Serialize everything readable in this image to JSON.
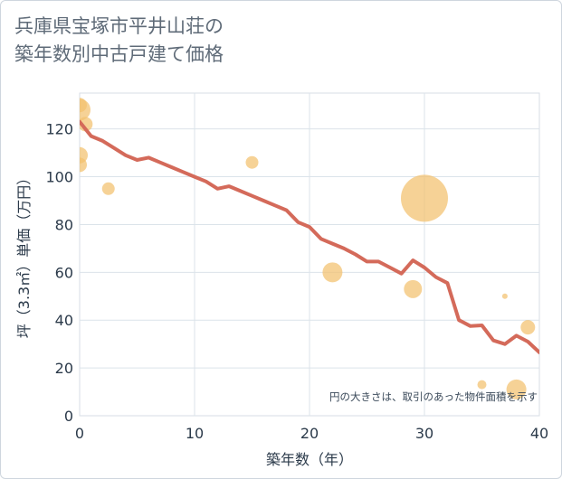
{
  "title_line1": "兵庫県宝塚市平井山荘の",
  "title_line2": "築年数別中古戸建て価格",
  "chart_data": {
    "type": "scatter",
    "title": "兵庫県宝塚市平井山荘の築年数別中古戸建て価格",
    "xlabel": "築年数（年）",
    "ylabel": "坪（3.3㎡）単価（万円）",
    "xlim": [
      0,
      40
    ],
    "ylim": [
      0,
      135
    ],
    "xticks": [
      0,
      10,
      20,
      30,
      40
    ],
    "yticks": [
      0,
      20,
      40,
      60,
      80,
      100,
      120
    ],
    "grid": true,
    "annotation": "円の大きさは、取引のあった物件面積を示す",
    "colors": {
      "line": "#d46a5a",
      "bubble": "#f3c06e"
    },
    "trend_line": {
      "x": [
        0,
        1,
        2,
        3,
        4,
        5,
        6,
        7,
        8,
        9,
        10,
        11,
        12,
        13,
        14,
        15,
        16,
        17,
        18,
        19,
        20,
        21,
        22,
        23,
        24,
        25,
        26,
        27,
        28,
        29,
        30,
        31,
        32,
        33,
        34,
        35,
        36,
        37,
        38,
        39,
        40
      ],
      "y": [
        123,
        117,
        115,
        112,
        109,
        107,
        108,
        106,
        104,
        102,
        100,
        98,
        95,
        96,
        94,
        92,
        90,
        88,
        86,
        81,
        79,
        74,
        72,
        70,
        67.5,
        64.5,
        64.5,
        62,
        59.5,
        65,
        62,
        58,
        55.5,
        40,
        37.5,
        37.8,
        31.5,
        30,
        33.5,
        31,
        26.5
      ]
    },
    "bubbles": [
      {
        "x": 0,
        "y": 130,
        "size": 8
      },
      {
        "x": 0,
        "y": 128,
        "size": 12
      },
      {
        "x": 0,
        "y": 109,
        "size": 9
      },
      {
        "x": 0,
        "y": 105,
        "size": 8
      },
      {
        "x": 0.5,
        "y": 122,
        "size": 8
      },
      {
        "x": 2.5,
        "y": 95,
        "size": 7
      },
      {
        "x": 15,
        "y": 106,
        "size": 7
      },
      {
        "x": 22,
        "y": 60,
        "size": 11
      },
      {
        "x": 29,
        "y": 53,
        "size": 10
      },
      {
        "x": 30,
        "y": 91,
        "size": 26
      },
      {
        "x": 35,
        "y": 13,
        "size": 5
      },
      {
        "x": 37,
        "y": 50,
        "size": 3
      },
      {
        "x": 38,
        "y": 11,
        "size": 11
      },
      {
        "x": 39,
        "y": 37,
        "size": 8
      }
    ]
  }
}
